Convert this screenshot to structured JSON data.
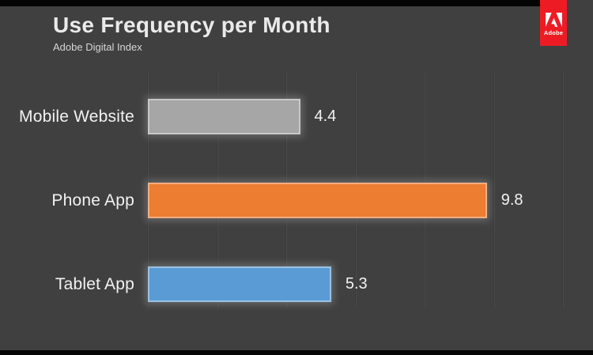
{
  "slide": {
    "background": "#404040",
    "top_strip_color": "#050505",
    "bottom_strip_color": "#050505"
  },
  "header": {
    "title": "Use Frequency per Month",
    "subtitle": "Adobe Digital Index"
  },
  "logo": {
    "text": "Adobe",
    "background": "#ed1c24",
    "mark_color": "#ffffff"
  },
  "chart_data": {
    "type": "bar",
    "orientation": "horizontal",
    "title": "Use Frequency per Month",
    "subtitle": "Adobe Digital Index",
    "categories": [
      "Mobile Website",
      "Phone App",
      "Tablet App"
    ],
    "values": [
      4.4,
      9.8,
      5.3
    ],
    "data_labels": [
      "4.4",
      "9.8",
      "5.3"
    ],
    "bar_colors": [
      "#a6a6a6",
      "#ed7d31",
      "#5b9bd5"
    ],
    "xlim": [
      0,
      12
    ],
    "gridline_step": 2,
    "grid": true,
    "legend": false,
    "label_text_color": "#f2f2f2"
  }
}
